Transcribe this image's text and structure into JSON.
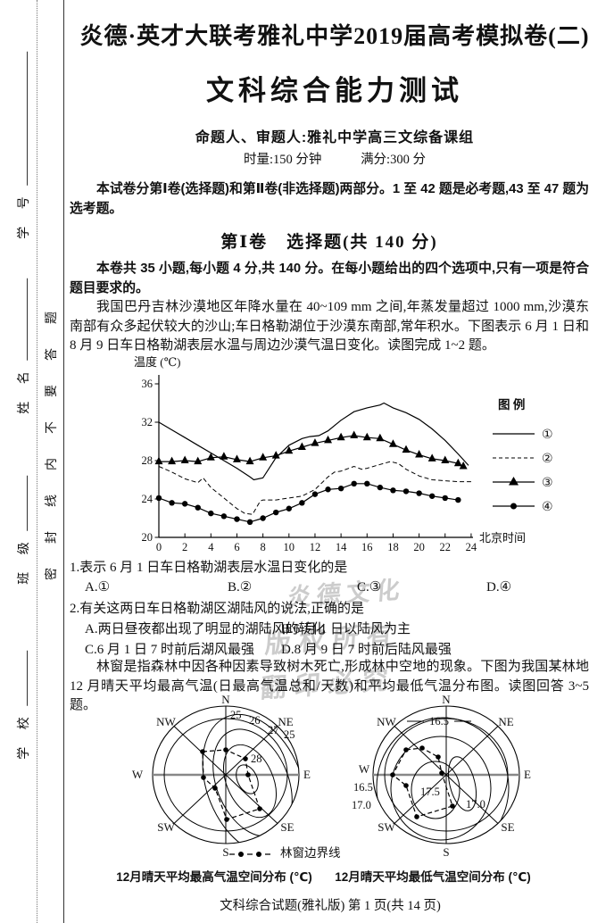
{
  "margin": {
    "fields": [
      {
        "label": "学  号"
      },
      {
        "label": "姓  名"
      },
      {
        "label": "班  级"
      },
      {
        "label": "学  校"
      }
    ],
    "seal": "密封线内不要答题"
  },
  "header": {
    "exam_series": "炎德·英才大联考雅礼中学2019届高考模拟卷(二)",
    "title": "文科综合能力测试",
    "authors": "命题人、审题人:雅礼中学高三文综备课组",
    "duration": "时量:150 分钟",
    "score": "满分:300 分"
  },
  "intro": "本试卷分第Ⅰ卷(选择题)和第Ⅱ卷(非选择题)两部分。1 至 42 题是必考题,43 至 47 题为选考题。",
  "section": {
    "title": "第Ⅰ卷　选择题(共 140 分)",
    "note": "本卷共 35 小题,每小题 4 分,共 140 分。在每小题给出的四个选项中,只有一项是符合题目要求的。"
  },
  "passages": {
    "p1": "我国巴丹吉林沙漠地区年降水量在 40~109 mm 之间,年蒸发量超过 1000 mm,沙漠东南部有众多起伏较大的沙山;车日格勒湖位于沙漠东南部,常年积水。下图表示 6 月 1 日和 8 月 9 日车日格勒湖表层水温与周边沙漠气温日变化。读图完成 1~2 题。",
    "p2": "林窗是指森林中因各种因素导致树木死亡,形成林中空地的现象。下图为我国某林地 12 月晴天平均最高气温(日最高气温总和/天数)和平均最低气温分布图。读图回答 3~5 题。"
  },
  "questions": [
    {
      "stem": "1.表示 6 月 1 日车日格勒湖表层水温日变化的是",
      "options": [
        "A.①",
        "B.②",
        "C.③",
        "D.④"
      ]
    },
    {
      "stem": "2.有关这两日车日格勒湖区湖陆风的说法,正确的是",
      "options": [
        "A.两日昼夜都出现了明显的湖陆风的转化",
        "B.6 月 1 日以陆风为主",
        "C.6 月 1 日 7 时前后湖风最强",
        "D.8 月 9 日 7 时前后陆风最强"
      ]
    }
  ],
  "chart_data": {
    "type": "line",
    "title": "车日格勒湖表层水温与周边沙漠气温日变化",
    "ylabel": "温度 (℃)",
    "xlabel": "北京时间",
    "ylim": [
      20,
      36
    ],
    "xlim": [
      0,
      24
    ],
    "yticks": [
      36,
      32,
      28,
      24,
      20
    ],
    "xticks": [
      0,
      2,
      4,
      6,
      8,
      10,
      12,
      14,
      16,
      18,
      20,
      22,
      24
    ],
    "grid": false,
    "legend_title": "图 例",
    "legend_position": "right",
    "series": [
      {
        "name": "①",
        "style": "solid",
        "marker": "none",
        "x": [
          0,
          1,
          2,
          3,
          4,
          5,
          6,
          7,
          7.3,
          8,
          9,
          10,
          11,
          11.6,
          12.3,
          13,
          14,
          15,
          16,
          17,
          17.3,
          18,
          19,
          20,
          21,
          22,
          23,
          23.8
        ],
        "values": [
          32,
          31.2,
          30.4,
          29.6,
          28.8,
          28,
          27.2,
          26.3,
          26,
          26.2,
          28.3,
          29.6,
          30.3,
          30.5,
          30.6,
          31.1,
          32.2,
          33.1,
          33.5,
          33.8,
          34,
          33.5,
          33,
          32.3,
          31.3,
          30.1,
          28.7,
          27.5
        ]
      },
      {
        "name": "②",
        "style": "dashed",
        "marker": "none",
        "x": [
          0,
          1,
          2,
          3,
          3.4,
          4,
          5,
          6,
          6.6,
          7.2,
          7.8,
          8,
          9,
          10,
          11,
          12,
          13,
          13.5,
          14,
          15,
          15.6,
          16,
          17,
          17.8,
          18.4,
          19,
          20,
          21,
          22,
          23,
          24
        ],
        "values": [
          27.4,
          26.8,
          26.1,
          25.7,
          26.2,
          25.2,
          24.1,
          23,
          22.5,
          22.4,
          23.8,
          23.9,
          23.9,
          24.1,
          24.3,
          25,
          26.3,
          26.8,
          26.9,
          27.4,
          27.1,
          27.2,
          27.6,
          27.9,
          27.7,
          27.1,
          26.4,
          26,
          25.9,
          25.8,
          25.8
        ]
      },
      {
        "name": "③",
        "style": "solid",
        "marker": "triangle",
        "x": [
          0,
          1,
          2,
          3,
          4,
          5,
          6,
          7,
          8,
          9,
          10,
          11,
          12,
          13,
          14,
          15,
          16,
          17,
          18,
          19,
          20,
          21,
          22,
          23,
          23.4
        ],
        "values": [
          27.9,
          27.9,
          28,
          27.9,
          28.3,
          28.4,
          28.1,
          27.9,
          28.3,
          28.5,
          29,
          29.4,
          29.8,
          30.1,
          30.4,
          30.6,
          30.4,
          30.3,
          29.7,
          29.1,
          28.6,
          28.2,
          28,
          27.7,
          27.4
        ]
      },
      {
        "name": "④",
        "style": "solid",
        "marker": "circle",
        "x": [
          0,
          1,
          2,
          3,
          4,
          5,
          6,
          7,
          8,
          9,
          10,
          11,
          12,
          13,
          14,
          15,
          16,
          17,
          18,
          19,
          20,
          21,
          22,
          23
        ],
        "values": [
          24.1,
          23.6,
          23.5,
          23.1,
          22.5,
          22.2,
          21.9,
          21.6,
          22,
          22.6,
          23,
          23.6,
          24.5,
          25,
          25.1,
          25.6,
          25.6,
          25.2,
          24.9,
          24.8,
          24.6,
          24.3,
          24.1,
          23.9
        ]
      }
    ]
  },
  "polar": {
    "dirs": [
      "N",
      "NE",
      "E",
      "SE",
      "S",
      "SW",
      "W",
      "NW"
    ],
    "left": {
      "contours": [
        "25",
        "26",
        "27",
        "28",
        "25"
      ],
      "caption": "12月晴天平均最高气温空间分布 (℃)"
    },
    "right": {
      "contours": [
        "16.5",
        "16.5",
        "17.5",
        "17.0",
        "17.0"
      ],
      "caption": "12月晴天平均最低气温空间分布 (℃)"
    },
    "boundary_legend": "林窗边界线"
  },
  "watermark": {
    "lines": [
      "炎德文化",
      "版权所有",
      "翻印必究"
    ]
  },
  "footer": "文科综合试题(雅礼版)  第 1 页(共 14 页)"
}
